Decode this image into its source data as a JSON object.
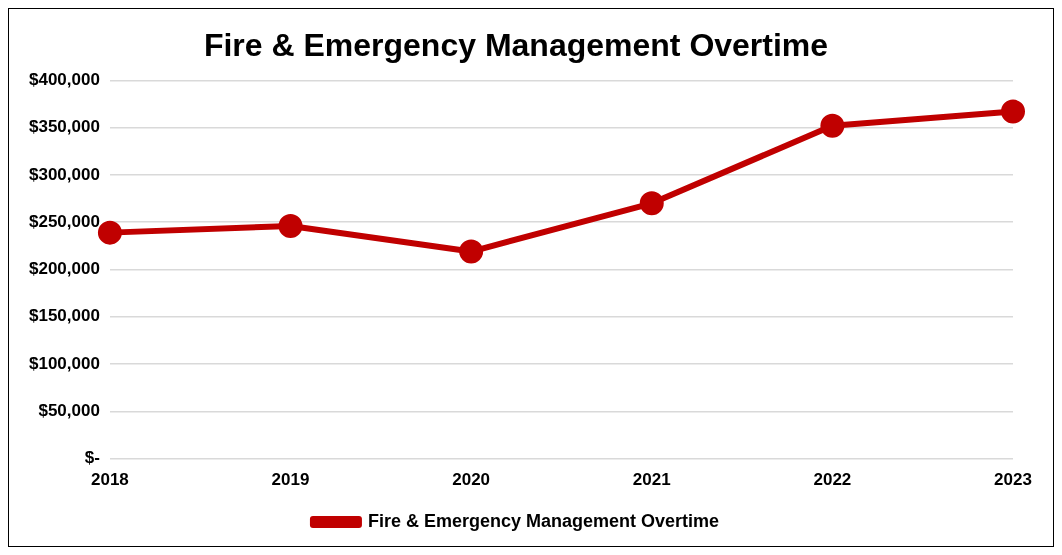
{
  "chart_data": {
    "type": "line",
    "title": "Fire & Emergency Management Overtime",
    "categories": [
      "2018",
      "2019",
      "2020",
      "2021",
      "2022",
      "2023"
    ],
    "series": [
      {
        "name": "Fire & Emergency Management Overtime",
        "color": "#c00000",
        "values": [
          239000,
          246000,
          219000,
          270000,
          352000,
          367000
        ]
      }
    ],
    "ylim": [
      0,
      400000
    ],
    "yticks": [
      {
        "value": 0,
        "label": "$-"
      },
      {
        "value": 50000,
        "label": "$50,000"
      },
      {
        "value": 100000,
        "label": "$100,000"
      },
      {
        "value": 150000,
        "label": "$150,000"
      },
      {
        "value": 200000,
        "label": "$200,000"
      },
      {
        "value": 250000,
        "label": "$250,000"
      },
      {
        "value": 300000,
        "label": "$300,000"
      },
      {
        "value": 350000,
        "label": "$350,000"
      },
      {
        "value": 400000,
        "label": "$400,000"
      }
    ],
    "grid": "y",
    "legend": "bottom",
    "marker": "circle",
    "line_style": "solid"
  }
}
